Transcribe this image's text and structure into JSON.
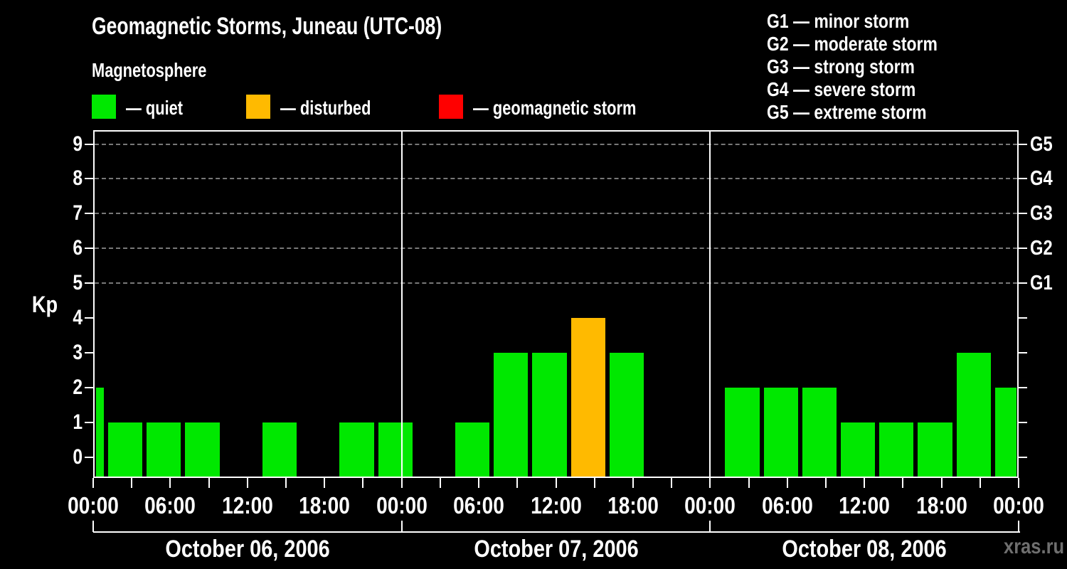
{
  "header": {
    "title": "Geomagnetic Storms, Juneau (UTC-08)",
    "subtitle": "Magnetosphere",
    "condition_legend": [
      {
        "name": "quiet",
        "label": "— quiet",
        "color": "#00e800"
      },
      {
        "name": "disturbed",
        "label": "— disturbed",
        "color": "#ffba00"
      },
      {
        "name": "storm",
        "label": "— geomagnetic storm",
        "color": "#ff0000"
      }
    ],
    "storm_scale": [
      "G1 — minor storm",
      "G2 — moderate storm",
      "G3 — strong storm",
      "G4 — severe storm",
      "G5 — extreme storm"
    ]
  },
  "watermark": "xras.ru",
  "chart_data": {
    "type": "bar",
    "title": "Geomagnetic Storms, Juneau (UTC-08)",
    "ylabel": "Kp",
    "ylim": [
      -0.6,
      9.4
    ],
    "yticks": [
      0,
      1,
      2,
      3,
      4,
      5,
      6,
      7,
      8,
      9
    ],
    "grid_levels_kp": [
      5,
      6,
      7,
      8,
      9
    ],
    "right_scale": [
      {
        "kp": 5,
        "label": "G1"
      },
      {
        "kp": 6,
        "label": "G2"
      },
      {
        "kp": 7,
        "label": "G3"
      },
      {
        "kp": 8,
        "label": "G4"
      },
      {
        "kp": 9,
        "label": "G5"
      }
    ],
    "x_axis": {
      "hours_total": 72,
      "tick_every_hours": 3,
      "label_every_hours": 6,
      "tick_labels": [
        "00:00",
        "06:00",
        "12:00",
        "18:00",
        "00:00",
        "06:00",
        "12:00",
        "18:00",
        "00:00",
        "06:00",
        "12:00",
        "18:00",
        "00:00"
      ]
    },
    "days": [
      {
        "label": "October 06, 2006",
        "start_hour": 0,
        "end_hour": 24
      },
      {
        "label": "October 07, 2006",
        "start_hour": 24,
        "end_hour": 48
      },
      {
        "label": "October 08, 2006",
        "start_hour": 48,
        "end_hour": 72
      }
    ],
    "colors": {
      "quiet": "#00e800",
      "disturbed": "#ffba00",
      "storm": "#ff0000"
    },
    "bars": [
      {
        "start_hour": -2,
        "end_hour": 1,
        "kp": 2,
        "condition": "quiet"
      },
      {
        "start_hour": 1,
        "end_hour": 4,
        "kp": 1,
        "condition": "quiet"
      },
      {
        "start_hour": 4,
        "end_hour": 7,
        "kp": 1,
        "condition": "quiet"
      },
      {
        "start_hour": 7,
        "end_hour": 10,
        "kp": 1,
        "condition": "quiet"
      },
      {
        "start_hour": 10,
        "end_hour": 13,
        "kp": 0,
        "condition": "quiet"
      },
      {
        "start_hour": 13,
        "end_hour": 16,
        "kp": 1,
        "condition": "quiet"
      },
      {
        "start_hour": 16,
        "end_hour": 19,
        "kp": 0,
        "condition": "quiet"
      },
      {
        "start_hour": 19,
        "end_hour": 22,
        "kp": 1,
        "condition": "quiet"
      },
      {
        "start_hour": 22,
        "end_hour": 25,
        "kp": 1,
        "condition": "quiet"
      },
      {
        "start_hour": 25,
        "end_hour": 28,
        "kp": 0,
        "condition": "quiet"
      },
      {
        "start_hour": 28,
        "end_hour": 31,
        "kp": 1,
        "condition": "quiet"
      },
      {
        "start_hour": 31,
        "end_hour": 34,
        "kp": 3,
        "condition": "quiet"
      },
      {
        "start_hour": 34,
        "end_hour": 37,
        "kp": 3,
        "condition": "quiet"
      },
      {
        "start_hour": 37,
        "end_hour": 40,
        "kp": 4,
        "condition": "disturbed"
      },
      {
        "start_hour": 40,
        "end_hour": 43,
        "kp": 3,
        "condition": "quiet"
      },
      {
        "start_hour": 43,
        "end_hour": 46,
        "kp": 0,
        "condition": "quiet"
      },
      {
        "start_hour": 46,
        "end_hour": 49,
        "kp": 0,
        "condition": "quiet"
      },
      {
        "start_hour": 49,
        "end_hour": 52,
        "kp": 2,
        "condition": "quiet"
      },
      {
        "start_hour": 52,
        "end_hour": 55,
        "kp": 2,
        "condition": "quiet"
      },
      {
        "start_hour": 55,
        "end_hour": 58,
        "kp": 2,
        "condition": "quiet"
      },
      {
        "start_hour": 58,
        "end_hour": 61,
        "kp": 1,
        "condition": "quiet"
      },
      {
        "start_hour": 61,
        "end_hour": 64,
        "kp": 1,
        "condition": "quiet"
      },
      {
        "start_hour": 64,
        "end_hour": 67,
        "kp": 1,
        "condition": "quiet"
      },
      {
        "start_hour": 67,
        "end_hour": 70,
        "kp": 3,
        "condition": "quiet"
      },
      {
        "start_hour": 70,
        "end_hour": 73,
        "kp": 2,
        "condition": "quiet"
      }
    ]
  }
}
